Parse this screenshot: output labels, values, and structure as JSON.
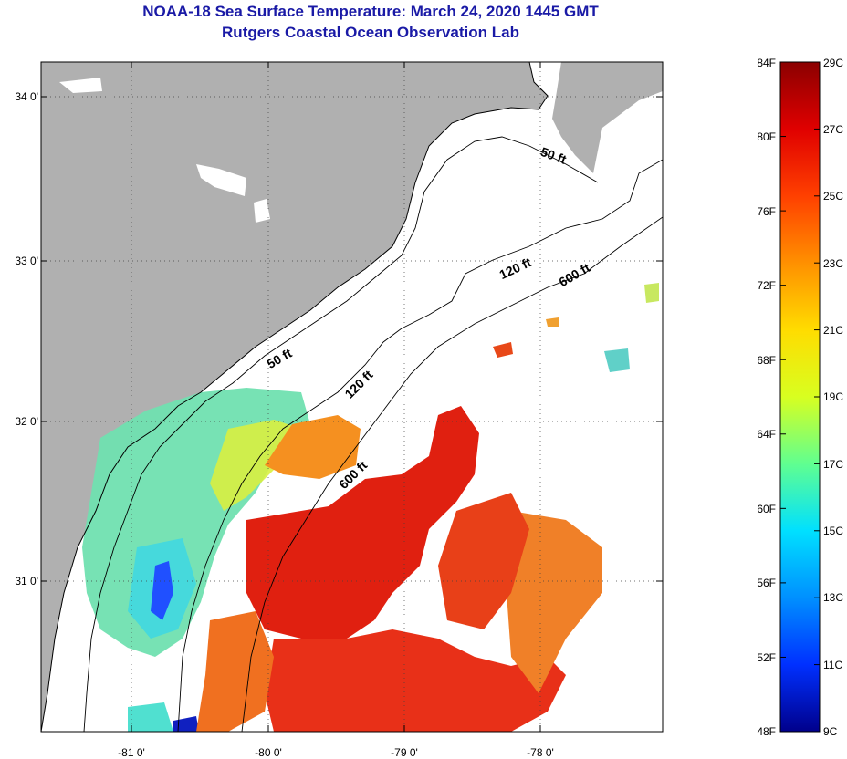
{
  "title_line1": "NOAA-18 Sea Surface Temperature:  March 24, 2020 1445 GMT",
  "title_line2": "Rutgers Coastal Ocean Observation Lab",
  "axes": {
    "lon_labels": [
      "-81 0'",
      "-80 0'",
      "-79 0'",
      "-78 0'"
    ],
    "lat_labels": [
      "34 0'",
      "33 0'",
      "32 0'",
      "31 0'"
    ]
  },
  "isobaths": [
    "50 ft",
    "50 ft",
    "120 ft",
    "120 ft",
    "600 ft",
    "600 ft"
  ],
  "colorbar": {
    "f_labels": [
      "84F",
      "80F",
      "76F",
      "72F",
      "68F",
      "64F",
      "60F",
      "56F",
      "52F",
      "48F"
    ],
    "c_labels": [
      "29C",
      "27C",
      "25C",
      "23C",
      "21C",
      "19C",
      "17C",
      "15C",
      "13C",
      "11C",
      "9C"
    ],
    "colors": [
      "#8b0000",
      "#e00000",
      "#ff4000",
      "#ff9000",
      "#ffdc00",
      "#d8ff20",
      "#60ff90",
      "#00e0ff",
      "#0090ff",
      "#0030ff",
      "#00008b"
    ]
  },
  "colors": {
    "title": "#1a1aa6",
    "land": "#b0b0b0",
    "cold": "#70e0b0",
    "warm": "#e02010"
  }
}
